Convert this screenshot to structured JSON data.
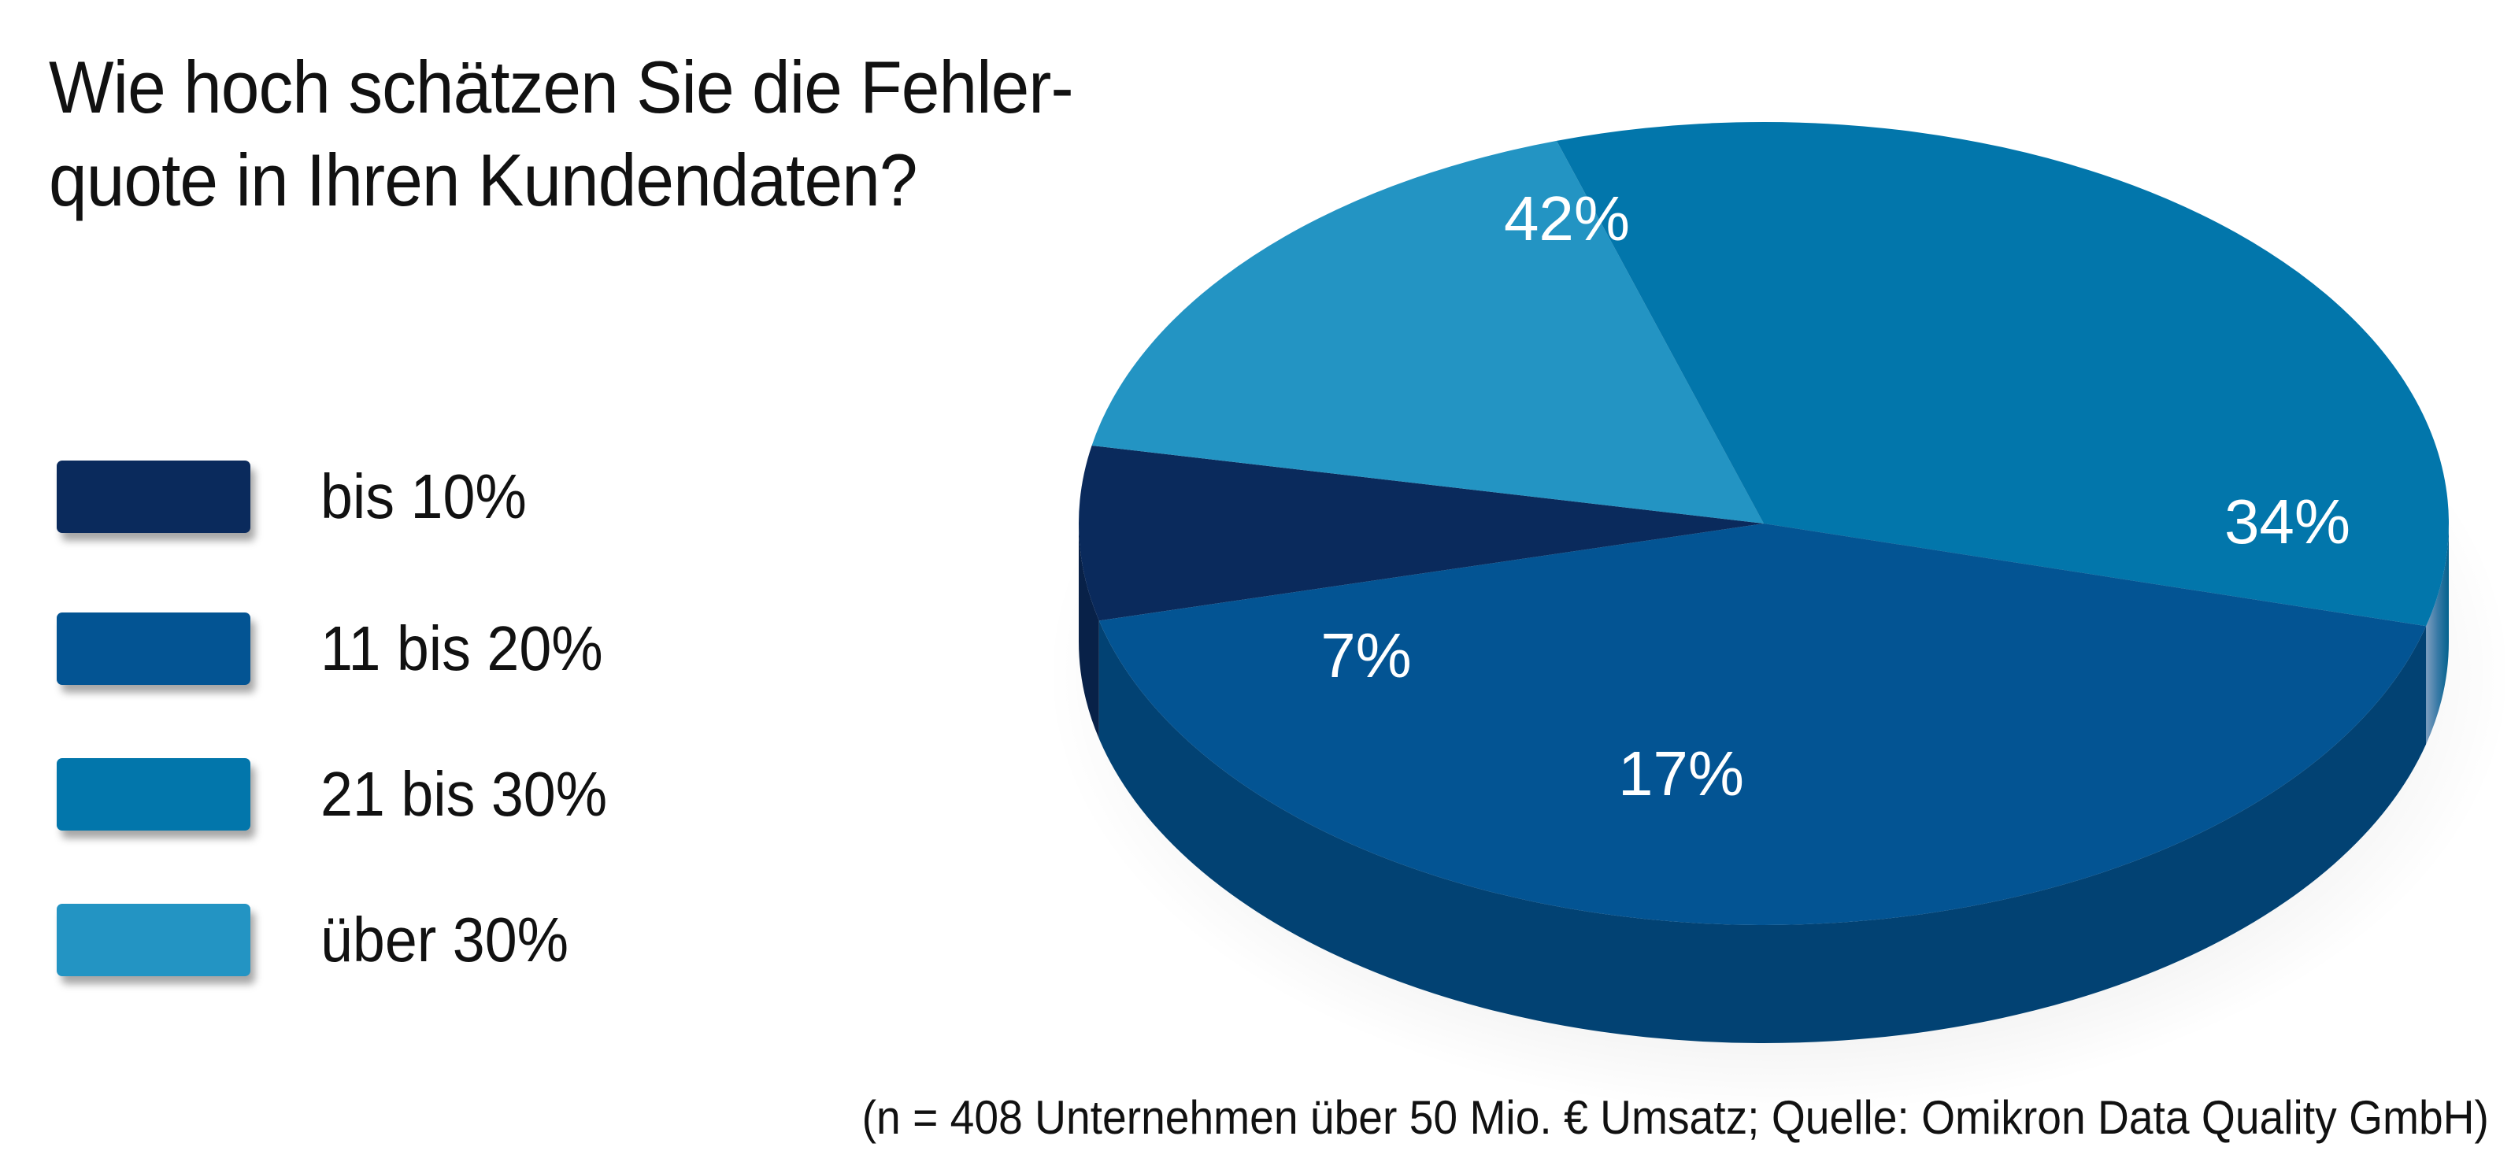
{
  "chart_data": {
    "type": "pie",
    "style": "3d",
    "title_lines": [
      "Wie hoch schätzen Sie die Fehler-",
      "quote in Ihren Kundendaten?"
    ],
    "categories": [
      "bis 10%",
      "11 bis 20%",
      "21 bis 30%",
      "über 30%"
    ],
    "values": [
      7,
      42,
      34,
      17
    ],
    "data_labels": [
      "7%",
      "42%",
      "34%",
      "17%"
    ],
    "unit": "%",
    "colors": [
      "#0a2a5c",
      "#035493",
      "#0276ab",
      "#2394c3"
    ],
    "legend_position": "left",
    "footnote": "(n = 408 Unternehmen über 50 Mio. € Umsatz; Quelle: Omikron Data Quality GmbH)"
  }
}
